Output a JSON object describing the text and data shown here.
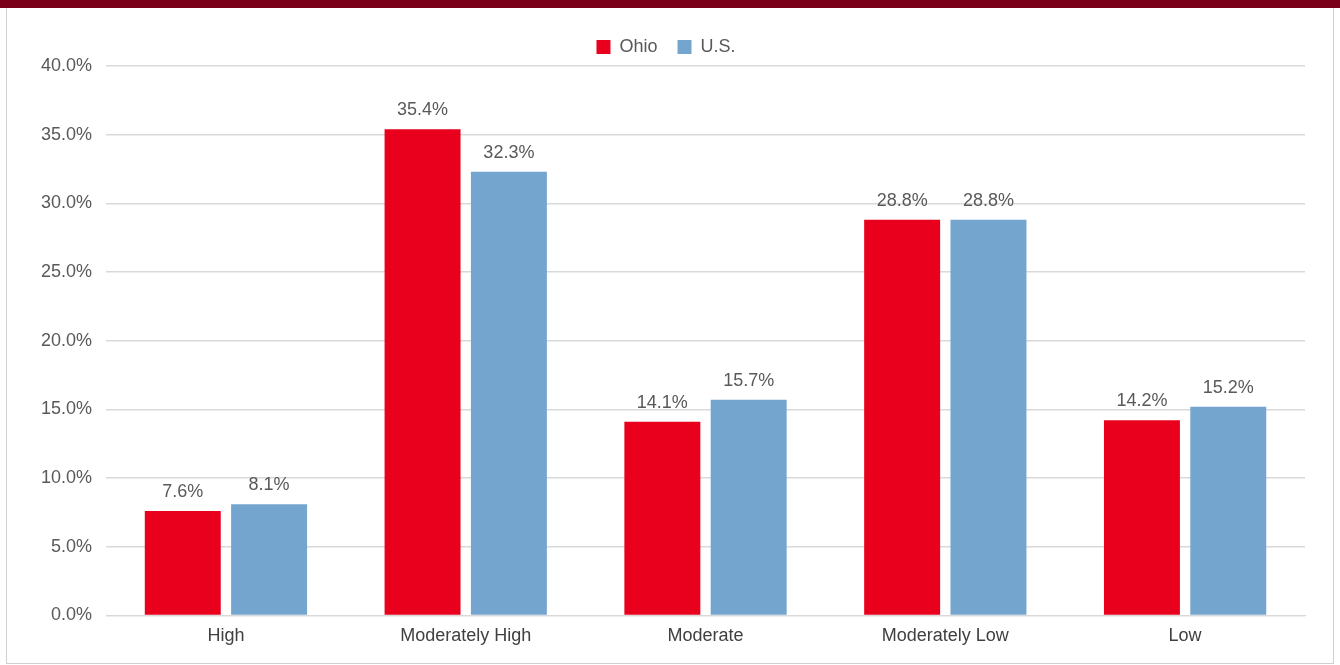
{
  "chart_data": {
    "type": "bar",
    "categories": [
      "High",
      "Moderately High",
      "Moderate",
      "Moderately Low",
      "Low"
    ],
    "series": [
      {
        "name": "Ohio",
        "color": "#e8001c",
        "values": [
          7.6,
          35.4,
          14.1,
          28.8,
          14.2
        ],
        "value_labels": [
          "7.6%",
          "35.4%",
          "14.1%",
          "28.8%",
          "14.2%"
        ]
      },
      {
        "name": "U.S.",
        "color": "#74a5cf",
        "values": [
          8.1,
          32.3,
          15.7,
          28.8,
          15.2
        ],
        "value_labels": [
          "8.1%",
          "32.3%",
          "15.7%",
          "28.8%",
          "15.2%"
        ]
      }
    ],
    "ylim": [
      0,
      40
    ],
    "yticks": [
      {
        "value": 0,
        "label": "0.0%"
      },
      {
        "value": 5,
        "label": "5.0%"
      },
      {
        "value": 10,
        "label": "10.0%"
      },
      {
        "value": 15,
        "label": "15.0%"
      },
      {
        "value": 20,
        "label": "20.0%"
      },
      {
        "value": 25,
        "label": "25.0%"
      },
      {
        "value": 30,
        "label": "30.0%"
      },
      {
        "value": 35,
        "label": "35.0%"
      },
      {
        "value": 40,
        "label": "40.0%"
      }
    ],
    "grid": "y",
    "legend": "top"
  }
}
